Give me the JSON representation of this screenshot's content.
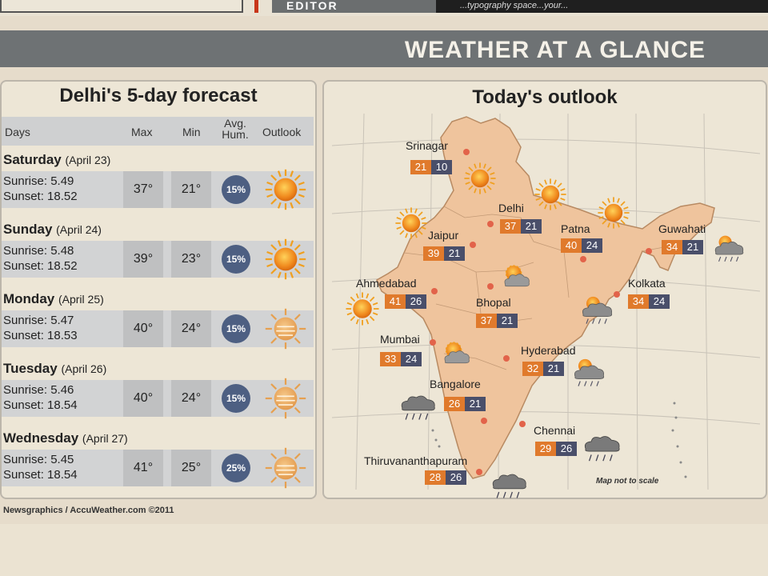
{
  "top": {
    "partial_header": "EDITOR",
    "partial_text": "...typography space...your..."
  },
  "banner": {
    "title": "WEATHER AT A GLANCE"
  },
  "forecast": {
    "title": "Delhi's 5-day forecast",
    "headers": {
      "days": "Days",
      "max": "Max",
      "min": "Min",
      "hum_line1": "Avg.",
      "hum_line2": "Hum.",
      "outlook": "Outlook"
    },
    "days": [
      {
        "name": "Saturday",
        "date": "(April 23)",
        "sunrise": "Sunrise: 5.49",
        "sunset": "Sunset: 18.52",
        "max": "37°",
        "min": "21°",
        "hum": "15%",
        "icon": "sun-icon"
      },
      {
        "name": "Sunday",
        "date": "(April 24)",
        "sunrise": "Sunrise: 5.48",
        "sunset": "Sunset: 18.52",
        "max": "39°",
        "min": "23°",
        "hum": "15%",
        "icon": "sun-icon"
      },
      {
        "name": "Monday",
        "date": "(April 25)",
        "sunrise": "Sunrise: 5.47",
        "sunset": "Sunset: 18.53",
        "max": "40°",
        "min": "24°",
        "hum": "15%",
        "icon": "hazy-sun-icon"
      },
      {
        "name": "Tuesday",
        "date": "(April 26)",
        "sunrise": "Sunrise: 5.46",
        "sunset": "Sunset: 18.54",
        "max": "40°",
        "min": "24°",
        "hum": "15%",
        "icon": "hazy-sun-icon"
      },
      {
        "name": "Wednesday",
        "date": "(April 27)",
        "sunrise": "Sunrise: 5.45",
        "sunset": "Sunset: 18.54",
        "max": "41°",
        "min": "25°",
        "hum": "25%",
        "icon": "hazy-sun-icon"
      }
    ]
  },
  "outlook": {
    "title": "Today's outlook",
    "note": "Map not to scale",
    "cities": [
      {
        "name": "Srinagar",
        "max": "21",
        "min": "10"
      },
      {
        "name": "Delhi",
        "max": "37",
        "min": "21"
      },
      {
        "name": "Jaipur",
        "max": "39",
        "min": "21"
      },
      {
        "name": "Patna",
        "max": "40",
        "min": "24"
      },
      {
        "name": "Guwahati",
        "max": "34",
        "min": "21"
      },
      {
        "name": "Ahmedabad",
        "max": "41",
        "min": "26"
      },
      {
        "name": "Bhopal",
        "max": "37",
        "min": "21"
      },
      {
        "name": "Kolkata",
        "max": "34",
        "min": "24"
      },
      {
        "name": "Mumbai",
        "max": "33",
        "min": "24"
      },
      {
        "name": "Hyderabad",
        "max": "32",
        "min": "21"
      },
      {
        "name": "Bangalore",
        "max": "26",
        "min": "21"
      },
      {
        "name": "Chennai",
        "max": "29",
        "min": "26"
      },
      {
        "name": "Thiruvananthapuram",
        "max": "28",
        "min": "26"
      }
    ]
  },
  "footer": {
    "credit": "Newsgraphics / AccuWeather.com ©2011"
  },
  "colors": {
    "banner": "#6e7274",
    "temp_max": "#e07a2c",
    "temp_min": "#4a4f6a",
    "humidity": "#4d5f82",
    "map_land": "#efc49d",
    "sun": "#f08a1e"
  }
}
